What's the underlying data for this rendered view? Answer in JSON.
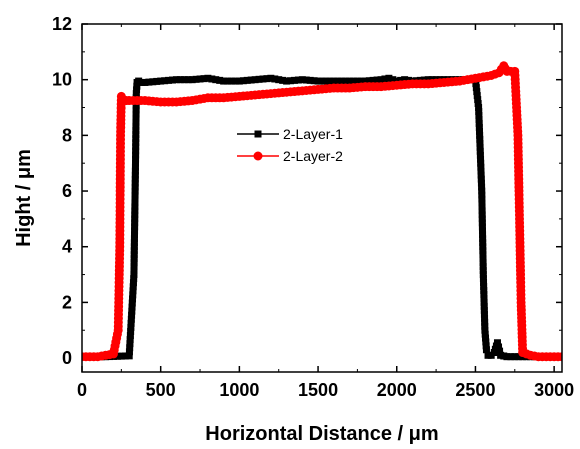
{
  "chart_data": {
    "type": "line",
    "xlabel": "Horizontal Distance / μm",
    "ylabel": "Hight / μm",
    "xlim": [
      0,
      3050
    ],
    "ylim": [
      -0.5,
      12
    ],
    "xticks": [
      0,
      500,
      1000,
      1500,
      2000,
      2500,
      3000
    ],
    "yticks": [
      0,
      2,
      4,
      6,
      8,
      10,
      12
    ],
    "xtick_labels": [
      "0",
      "500",
      "1000",
      "1500",
      "2000",
      "2500",
      "3000"
    ],
    "ytick_labels": [
      "0",
      "2",
      "4",
      "6",
      "8",
      "10",
      "12"
    ],
    "grid": false,
    "legend_position": "center",
    "series": [
      {
        "name": "2-Layer-1",
        "color": "#000000",
        "marker": "square",
        "x": [
          0,
          150,
          300,
          330,
          340,
          345,
          350,
          360,
          380,
          400,
          500,
          600,
          700,
          800,
          900,
          1000,
          1100,
          1200,
          1300,
          1400,
          1500,
          1600,
          1700,
          1800,
          1900,
          1950,
          2000,
          2050,
          2100,
          2200,
          2300,
          2400,
          2500,
          2520,
          2540,
          2550,
          2560,
          2570,
          2580,
          2600,
          2620,
          2640,
          2660,
          2700,
          2800,
          2900,
          3050
        ],
        "y": [
          0.05,
          0.05,
          0.08,
          3.0,
          7.0,
          9.5,
          9.9,
          9.95,
          9.9,
          9.9,
          9.95,
          10.0,
          10.0,
          10.05,
          9.95,
          9.95,
          10.0,
          10.05,
          9.95,
          10.0,
          9.95,
          9.95,
          9.95,
          9.95,
          10.0,
          10.05,
          9.95,
          10.0,
          9.95,
          10.0,
          10.0,
          10.0,
          10.0,
          9.0,
          6.0,
          3.0,
          1.0,
          0.3,
          0.1,
          0.1,
          0.2,
          0.55,
          0.1,
          0.05,
          0.05,
          0.05,
          0.05
        ]
      },
      {
        "name": "2-Layer-2",
        "color": "#ff0000",
        "marker": "circle",
        "x": [
          0,
          100,
          200,
          230,
          240,
          245,
          250,
          260,
          280,
          300,
          400,
          500,
          600,
          700,
          800,
          900,
          1000,
          1100,
          1200,
          1300,
          1400,
          1500,
          1600,
          1700,
          1800,
          1900,
          2000,
          2100,
          2200,
          2300,
          2400,
          2500,
          2600,
          2650,
          2680,
          2700,
          2750,
          2770,
          2780,
          2790,
          2800,
          2850,
          2900,
          3000,
          3050
        ],
        "y": [
          0.05,
          0.05,
          0.15,
          1.0,
          4.0,
          8.0,
          9.4,
          9.3,
          9.25,
          9.25,
          9.25,
          9.2,
          9.2,
          9.25,
          9.35,
          9.35,
          9.4,
          9.45,
          9.5,
          9.55,
          9.6,
          9.65,
          9.7,
          9.7,
          9.75,
          9.75,
          9.8,
          9.85,
          9.85,
          9.9,
          9.95,
          10.05,
          10.15,
          10.25,
          10.5,
          10.3,
          10.3,
          8.0,
          5.0,
          2.0,
          0.2,
          0.1,
          0.05,
          0.05,
          0.05
        ]
      }
    ]
  }
}
